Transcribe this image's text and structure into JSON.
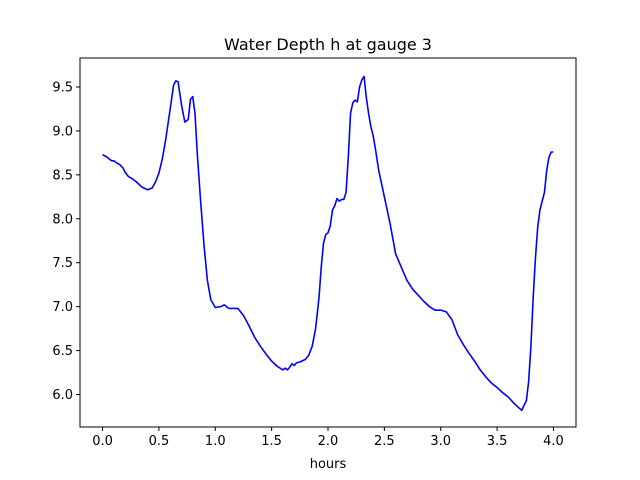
{
  "chart_data": {
    "type": "line",
    "title": "Water Depth h at gauge 3",
    "xlabel": "hours",
    "ylabel": "",
    "xlim": [
      -0.2,
      4.2
    ],
    "ylim": [
      5.63,
      9.83
    ],
    "xticks": [
      0.0,
      0.5,
      1.0,
      1.5,
      2.0,
      2.5,
      3.0,
      3.5,
      4.0
    ],
    "xtick_labels": [
      "0.0",
      "0.5",
      "1.0",
      "1.5",
      "2.0",
      "2.5",
      "3.0",
      "3.5",
      "4.0"
    ],
    "yticks": [
      6.0,
      6.5,
      7.0,
      7.5,
      8.0,
      8.5,
      9.0,
      9.5
    ],
    "ytick_labels": [
      "6.0",
      "6.5",
      "7.0",
      "7.5",
      "8.0",
      "8.5",
      "9.0",
      "9.5"
    ],
    "grid": false,
    "legend": false,
    "series": [
      {
        "color": "#0000ff",
        "x": [
          0.0,
          0.03,
          0.06,
          0.08,
          0.1,
          0.12,
          0.15,
          0.18,
          0.2,
          0.23,
          0.27,
          0.3,
          0.35,
          0.4,
          0.44,
          0.47,
          0.5,
          0.53,
          0.56,
          0.6,
          0.63,
          0.65,
          0.67,
          0.7,
          0.73,
          0.76,
          0.78,
          0.8,
          0.82,
          0.84,
          0.87,
          0.9,
          0.93,
          0.96,
          1.0,
          1.05,
          1.08,
          1.12,
          1.15,
          1.2,
          1.25,
          1.3,
          1.35,
          1.4,
          1.45,
          1.5,
          1.55,
          1.6,
          1.62,
          1.64,
          1.66,
          1.68,
          1.7,
          1.72,
          1.75,
          1.8,
          1.83,
          1.86,
          1.89,
          1.92,
          1.94,
          1.96,
          1.98,
          2.0,
          2.02,
          2.04,
          2.06,
          2.08,
          2.1,
          2.12,
          2.14,
          2.16,
          2.18,
          2.2,
          2.22,
          2.24,
          2.26,
          2.28,
          2.3,
          2.32,
          2.34,
          2.36,
          2.38,
          2.4,
          2.42,
          2.45,
          2.5,
          2.55,
          2.6,
          2.65,
          2.7,
          2.75,
          2.8,
          2.85,
          2.9,
          2.95,
          3.0,
          3.05,
          3.1,
          3.15,
          3.2,
          3.25,
          3.3,
          3.35,
          3.4,
          3.45,
          3.5,
          3.55,
          3.6,
          3.65,
          3.7,
          3.72,
          3.74,
          3.76,
          3.78,
          3.8,
          3.82,
          3.84,
          3.86,
          3.88,
          3.9,
          3.92,
          3.94,
          3.96,
          3.98,
          4.0
        ],
        "y": [
          8.73,
          8.71,
          8.68,
          8.66,
          8.66,
          8.64,
          8.62,
          8.58,
          8.53,
          8.48,
          8.45,
          8.42,
          8.36,
          8.33,
          8.35,
          8.42,
          8.52,
          8.68,
          8.9,
          9.25,
          9.52,
          9.57,
          9.56,
          9.3,
          9.1,
          9.13,
          9.36,
          9.39,
          9.2,
          8.75,
          8.2,
          7.7,
          7.3,
          7.08,
          6.99,
          7.0,
          7.02,
          6.98,
          6.98,
          6.98,
          6.9,
          6.78,
          6.65,
          6.55,
          6.46,
          6.38,
          6.32,
          6.28,
          6.3,
          6.28,
          6.31,
          6.35,
          6.33,
          6.36,
          6.37,
          6.4,
          6.45,
          6.55,
          6.75,
          7.1,
          7.45,
          7.72,
          7.82,
          7.84,
          7.92,
          8.1,
          8.15,
          8.23,
          8.2,
          8.22,
          8.22,
          8.3,
          8.7,
          9.2,
          9.32,
          9.35,
          9.33,
          9.5,
          9.58,
          9.62,
          9.38,
          9.2,
          9.05,
          8.95,
          8.8,
          8.55,
          8.25,
          7.95,
          7.6,
          7.45,
          7.3,
          7.2,
          7.13,
          7.06,
          7.0,
          6.96,
          6.96,
          6.94,
          6.85,
          6.68,
          6.57,
          6.47,
          6.38,
          6.28,
          6.2,
          6.13,
          6.08,
          6.02,
          5.97,
          5.9,
          5.84,
          5.82,
          5.88,
          5.93,
          6.15,
          6.55,
          7.1,
          7.55,
          7.9,
          8.1,
          8.2,
          8.3,
          8.55,
          8.7,
          8.76,
          8.76
        ]
      }
    ]
  }
}
